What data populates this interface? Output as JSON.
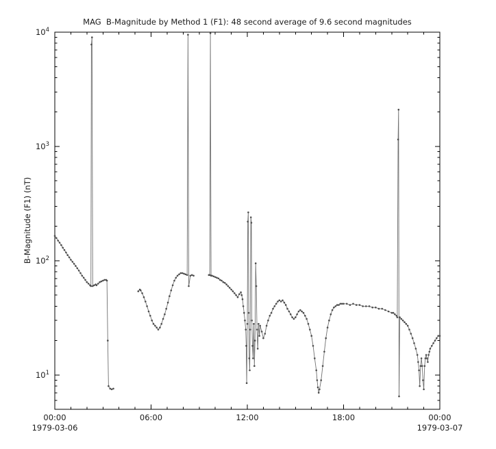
{
  "chart_data": {
    "type": "line",
    "title": "MAG  B-Magnitude by Method 1 (F1): 48 second average of 9.6 second magnitudes",
    "xlabel": "",
    "ylabel": "B-Magnitude (F1) (nT)",
    "x_unit": "hours since 1979-03-06 00:00",
    "yscale": "log",
    "xlim": [
      0,
      24
    ],
    "log_ylim": [
      0.7,
      4
    ],
    "grid": false,
    "legend": "none",
    "x_ticks": [
      {
        "t": 0,
        "label": "00:00"
      },
      {
        "t": 6,
        "label": "06:00"
      },
      {
        "t": 12,
        "label": "12:00"
      },
      {
        "t": 18,
        "label": "18:00"
      },
      {
        "t": 24,
        "label": "00:00"
      }
    ],
    "x_date_labels": [
      {
        "t": 0,
        "label": "1979-03-06"
      },
      {
        "t": 24,
        "label": "1979-03-07"
      }
    ],
    "y_ticks": [
      {
        "value": 10,
        "base": "10",
        "exp": "1"
      },
      {
        "value": 100,
        "base": "10",
        "exp": "2"
      },
      {
        "value": 1000,
        "base": "10",
        "exp": "3"
      },
      {
        "value": 10000,
        "base": "10",
        "exp": "4"
      }
    ],
    "colors": {
      "line": "#707070",
      "marker": "#4d4d4d",
      "axis": "#000000",
      "text": "#1a1a1a",
      "background": "#ffffff"
    },
    "gap_threshold_hours": 0.35,
    "series": [
      {
        "name": "B-magnitude (F1)",
        "points": [
          [
            0.0,
            165
          ],
          [
            0.1,
            158
          ],
          [
            0.2,
            150
          ],
          [
            0.3,
            144
          ],
          [
            0.4,
            137
          ],
          [
            0.5,
            130
          ],
          [
            0.6,
            124
          ],
          [
            0.7,
            118
          ],
          [
            0.8,
            112
          ],
          [
            0.9,
            107
          ],
          [
            1.0,
            102
          ],
          [
            1.1,
            98
          ],
          [
            1.2,
            94
          ],
          [
            1.3,
            90
          ],
          [
            1.4,
            86
          ],
          [
            1.5,
            82
          ],
          [
            1.6,
            78
          ],
          [
            1.7,
            74
          ],
          [
            1.8,
            71
          ],
          [
            1.9,
            68
          ],
          [
            2.0,
            65
          ],
          [
            2.1,
            63
          ],
          [
            2.2,
            61
          ],
          [
            2.25,
            60
          ],
          [
            2.28,
            7800
          ],
          [
            2.32,
            9000
          ],
          [
            2.36,
            60
          ],
          [
            2.45,
            61
          ],
          [
            2.55,
            62
          ],
          [
            2.6,
            61
          ],
          [
            2.7,
            63
          ],
          [
            2.8,
            65
          ],
          [
            2.9,
            66
          ],
          [
            3.0,
            67
          ],
          [
            3.1,
            68
          ],
          [
            3.2,
            68
          ],
          [
            3.25,
            67
          ],
          [
            3.3,
            20
          ],
          [
            3.35,
            8.0
          ],
          [
            3.45,
            7.6
          ],
          [
            3.55,
            7.5
          ],
          [
            3.65,
            7.6
          ],
          [
            5.2,
            54
          ],
          [
            5.3,
            56
          ],
          [
            5.35,
            55
          ],
          [
            5.45,
            52
          ],
          [
            5.55,
            48
          ],
          [
            5.65,
            44
          ],
          [
            5.75,
            40
          ],
          [
            5.85,
            36
          ],
          [
            5.95,
            33
          ],
          [
            6.05,
            30
          ],
          [
            6.15,
            28
          ],
          [
            6.25,
            27
          ],
          [
            6.35,
            26
          ],
          [
            6.45,
            25
          ],
          [
            6.55,
            26
          ],
          [
            6.65,
            28
          ],
          [
            6.75,
            31
          ],
          [
            6.85,
            34
          ],
          [
            6.95,
            38
          ],
          [
            7.05,
            43
          ],
          [
            7.15,
            49
          ],
          [
            7.25,
            55
          ],
          [
            7.35,
            61
          ],
          [
            7.45,
            67
          ],
          [
            7.55,
            71
          ],
          [
            7.65,
            74
          ],
          [
            7.75,
            76
          ],
          [
            7.85,
            78
          ],
          [
            7.95,
            78
          ],
          [
            8.05,
            77
          ],
          [
            8.15,
            76
          ],
          [
            8.25,
            75
          ],
          [
            8.3,
            9500
          ],
          [
            8.35,
            60
          ],
          [
            8.45,
            74
          ],
          [
            8.55,
            75
          ],
          [
            8.65,
            74
          ],
          [
            9.6,
            75
          ],
          [
            9.66,
            75
          ],
          [
            9.7,
            9800
          ],
          [
            9.74,
            74
          ],
          [
            9.8,
            74
          ],
          [
            9.9,
            73
          ],
          [
            10.0,
            72
          ],
          [
            10.1,
            71
          ],
          [
            10.2,
            70
          ],
          [
            10.3,
            68
          ],
          [
            10.4,
            67
          ],
          [
            10.5,
            65
          ],
          [
            10.6,
            64
          ],
          [
            10.7,
            62
          ],
          [
            10.8,
            60
          ],
          [
            10.9,
            58
          ],
          [
            11.0,
            56
          ],
          [
            11.1,
            54
          ],
          [
            11.2,
            52
          ],
          [
            11.3,
            50
          ],
          [
            11.4,
            48
          ],
          [
            11.5,
            51
          ],
          [
            11.6,
            53
          ],
          [
            11.65,
            50
          ],
          [
            11.7,
            46
          ],
          [
            11.75,
            40
          ],
          [
            11.8,
            35
          ],
          [
            11.85,
            30
          ],
          [
            11.9,
            25
          ],
          [
            11.93,
            18
          ],
          [
            11.96,
            8.5
          ],
          [
            12.0,
            28
          ],
          [
            12.03,
            220
          ],
          [
            12.06,
            265
          ],
          [
            12.09,
            35
          ],
          [
            12.12,
            14
          ],
          [
            12.15,
            11
          ],
          [
            12.18,
            25
          ],
          [
            12.22,
            240
          ],
          [
            12.25,
            215
          ],
          [
            12.28,
            30
          ],
          [
            12.32,
            18
          ],
          [
            12.36,
            14
          ],
          [
            12.4,
            28
          ],
          [
            12.44,
            12
          ],
          [
            12.48,
            20
          ],
          [
            12.52,
            95
          ],
          [
            12.56,
            60
          ],
          [
            12.6,
            25
          ],
          [
            12.65,
            17
          ],
          [
            12.7,
            28
          ],
          [
            12.75,
            22
          ],
          [
            12.8,
            27
          ],
          [
            12.9,
            24
          ],
          [
            13.0,
            21
          ],
          [
            13.1,
            23
          ],
          [
            13.2,
            27
          ],
          [
            13.3,
            30
          ],
          [
            13.4,
            33
          ],
          [
            13.5,
            35
          ],
          [
            13.6,
            38
          ],
          [
            13.7,
            40
          ],
          [
            13.8,
            42
          ],
          [
            13.9,
            44
          ],
          [
            14.0,
            45
          ],
          [
            14.1,
            44
          ],
          [
            14.2,
            45
          ],
          [
            14.3,
            43
          ],
          [
            14.4,
            41
          ],
          [
            14.5,
            38
          ],
          [
            14.6,
            36
          ],
          [
            14.7,
            34
          ],
          [
            14.8,
            32
          ],
          [
            14.9,
            31
          ],
          [
            15.0,
            32
          ],
          [
            15.1,
            34
          ],
          [
            15.2,
            36
          ],
          [
            15.3,
            37
          ],
          [
            15.4,
            36
          ],
          [
            15.5,
            35
          ],
          [
            15.6,
            33
          ],
          [
            15.7,
            31
          ],
          [
            15.8,
            28
          ],
          [
            15.9,
            25
          ],
          [
            16.0,
            22
          ],
          [
            16.1,
            18
          ],
          [
            16.2,
            14
          ],
          [
            16.3,
            11
          ],
          [
            16.35,
            9
          ],
          [
            16.4,
            7.8
          ],
          [
            16.45,
            7
          ],
          [
            16.5,
            7.5
          ],
          [
            16.6,
            9
          ],
          [
            16.7,
            12
          ],
          [
            16.8,
            16
          ],
          [
            16.9,
            21
          ],
          [
            17.0,
            26
          ],
          [
            17.1,
            30
          ],
          [
            17.2,
            34
          ],
          [
            17.3,
            37
          ],
          [
            17.4,
            39
          ],
          [
            17.5,
            40
          ],
          [
            17.6,
            41
          ],
          [
            17.7,
            41
          ],
          [
            17.8,
            42
          ],
          [
            17.9,
            42
          ],
          [
            18.0,
            42
          ],
          [
            18.2,
            42
          ],
          [
            18.4,
            41
          ],
          [
            18.6,
            42
          ],
          [
            18.8,
            41
          ],
          [
            19.0,
            41
          ],
          [
            19.2,
            40
          ],
          [
            19.4,
            40
          ],
          [
            19.6,
            40
          ],
          [
            19.8,
            39
          ],
          [
            20.0,
            39
          ],
          [
            20.2,
            38
          ],
          [
            20.4,
            38
          ],
          [
            20.6,
            37
          ],
          [
            20.8,
            36
          ],
          [
            21.0,
            35
          ],
          [
            21.1,
            35
          ],
          [
            21.2,
            34
          ],
          [
            21.3,
            33
          ],
          [
            21.35,
            32
          ],
          [
            21.4,
            1150
          ],
          [
            21.43,
            2100
          ],
          [
            21.46,
            6.5
          ],
          [
            21.5,
            32
          ],
          [
            21.6,
            31
          ],
          [
            21.7,
            30
          ],
          [
            21.8,
            29
          ],
          [
            21.9,
            28
          ],
          [
            22.0,
            27
          ],
          [
            22.1,
            25
          ],
          [
            22.2,
            23
          ],
          [
            22.3,
            21
          ],
          [
            22.4,
            19
          ],
          [
            22.5,
            17
          ],
          [
            22.6,
            15
          ],
          [
            22.65,
            13
          ],
          [
            22.7,
            11
          ],
          [
            22.75,
            8
          ],
          [
            22.8,
            12
          ],
          [
            22.85,
            14
          ],
          [
            22.9,
            12
          ],
          [
            22.95,
            9
          ],
          [
            23.0,
            7.5
          ],
          [
            23.05,
            12
          ],
          [
            23.1,
            14
          ],
          [
            23.15,
            15
          ],
          [
            23.2,
            14
          ],
          [
            23.25,
            13
          ],
          [
            23.3,
            15
          ],
          [
            23.35,
            16
          ],
          [
            23.4,
            17
          ],
          [
            23.5,
            18
          ],
          [
            23.6,
            19
          ],
          [
            23.7,
            20
          ],
          [
            23.8,
            21
          ],
          [
            23.9,
            22
          ],
          [
            24.0,
            22
          ]
        ]
      }
    ]
  }
}
